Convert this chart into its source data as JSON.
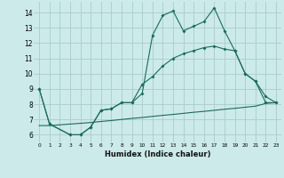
{
  "xlabel": "Humidex (Indice chaleur)",
  "bg_color": "#cceaea",
  "grid_color": "#aacccc",
  "line_color": "#1a6b5a",
  "xlim": [
    -0.5,
    23.5
  ],
  "ylim": [
    5.5,
    14.7
  ],
  "yticks": [
    6,
    7,
    8,
    9,
    10,
    11,
    12,
    13,
    14
  ],
  "xticks": [
    0,
    1,
    2,
    3,
    4,
    5,
    6,
    7,
    8,
    9,
    10,
    11,
    12,
    13,
    14,
    15,
    16,
    17,
    18,
    19,
    20,
    21,
    22,
    23
  ],
  "series1_x": [
    0,
    1,
    3,
    4,
    5,
    6,
    7,
    8,
    9,
    10,
    11,
    12,
    13,
    14,
    15,
    16,
    17,
    18,
    19,
    20,
    21,
    22,
    23
  ],
  "series1_y": [
    9.0,
    6.7,
    6.0,
    6.0,
    6.5,
    7.6,
    7.7,
    8.1,
    8.1,
    8.7,
    12.5,
    13.8,
    14.1,
    12.8,
    13.1,
    13.4,
    14.3,
    12.8,
    11.5,
    10.0,
    9.5,
    8.1,
    8.1
  ],
  "series2_x": [
    0,
    1,
    3,
    4,
    5,
    6,
    7,
    8,
    9,
    10,
    11,
    12,
    13,
    14,
    15,
    16,
    17,
    18,
    19,
    20,
    21,
    22,
    23
  ],
  "series2_y": [
    9.0,
    6.7,
    6.0,
    6.0,
    6.5,
    7.6,
    7.7,
    8.1,
    8.1,
    9.3,
    9.8,
    10.5,
    11.0,
    11.3,
    11.5,
    11.7,
    11.8,
    11.6,
    11.5,
    10.0,
    9.5,
    8.5,
    8.1
  ],
  "series3_x": [
    0,
    1,
    2,
    3,
    4,
    5,
    6,
    7,
    8,
    9,
    10,
    11,
    12,
    13,
    14,
    15,
    16,
    17,
    18,
    19,
    20,
    21,
    22,
    23
  ],
  "series3_y": [
    6.6,
    6.6,
    6.65,
    6.7,
    6.75,
    6.8,
    6.87,
    6.93,
    7.0,
    7.07,
    7.13,
    7.2,
    7.27,
    7.33,
    7.4,
    7.47,
    7.53,
    7.6,
    7.67,
    7.73,
    7.8,
    7.87,
    8.05,
    8.1
  ]
}
